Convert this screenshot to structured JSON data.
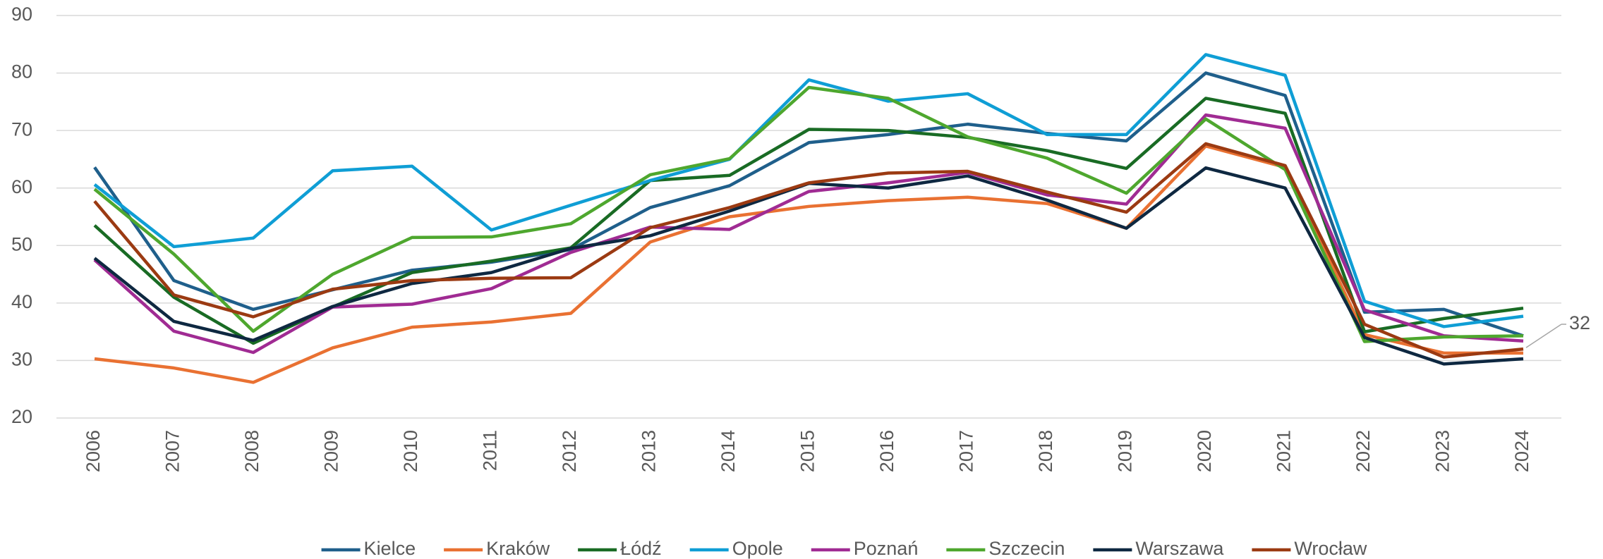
{
  "chart_data": {
    "type": "line",
    "x": [
      "2006",
      "2007",
      "2008",
      "2009",
      "2010",
      "2011",
      "2012",
      "2013",
      "2014",
      "2015",
      "2016",
      "2017",
      "2018",
      "2019",
      "2020",
      "2021",
      "2022",
      "2023",
      "2024"
    ],
    "ylim": [
      20,
      90
    ],
    "yticks": [
      20,
      30,
      40,
      50,
      60,
      70,
      80,
      90
    ],
    "grid": true,
    "legend": "bottom",
    "data_label": {
      "series": "Wrocław",
      "point": "2024"
    },
    "series": [
      {
        "name": "Kielce",
        "color": "#1f5f8b",
        "values": [
          63.6,
          43.9,
          38.9,
          42.3,
          45.7,
          47.1,
          49.3,
          56.6,
          60.4,
          67.9,
          69.3,
          71.1,
          69.5,
          68.2,
          80,
          76.1,
          38.4,
          38.9,
          34.3
        ]
      },
      {
        "name": "Kraków",
        "color": "#e97132",
        "values": [
          30.3,
          28.7,
          26.2,
          32.2,
          35.8,
          36.7,
          38.2,
          50.6,
          55,
          56.8,
          57.8,
          58.4,
          57.3,
          53,
          67.3,
          63.6,
          34.5,
          31.3,
          31.3
        ]
      },
      {
        "name": "Łódź",
        "color": "#196b24",
        "values": [
          53.5,
          41,
          33,
          39.3,
          45.3,
          47.3,
          49.6,
          61.3,
          62.2,
          70.2,
          70,
          68.8,
          66.5,
          63.4,
          75.6,
          73,
          35,
          37.3,
          39.1
        ]
      },
      {
        "name": "Opole",
        "color": "#0f9ed5",
        "values": [
          60.6,
          49.8,
          51.3,
          63,
          63.8,
          52.7,
          57,
          61.3,
          65,
          78.8,
          75.1,
          76.4,
          69.3,
          69.3,
          83.2,
          79.6,
          40.3,
          35.9,
          37.7
        ]
      },
      {
        "name": "Poznań",
        "color": "#a02b93",
        "values": [
          47.5,
          35.1,
          31.4,
          39.3,
          39.8,
          42.5,
          48.8,
          53.2,
          52.8,
          59.4,
          60.9,
          62.7,
          58.8,
          57.2,
          72.7,
          70.4,
          38.8,
          34.3,
          33.4
        ]
      },
      {
        "name": "Szczecin",
        "color": "#4ea72e",
        "values": [
          59.8,
          48.5,
          35.1,
          45,
          51.4,
          51.5,
          53.8,
          62.3,
          65.1,
          77.5,
          75.6,
          68.9,
          65.2,
          59.1,
          72,
          63.2,
          33.3,
          34.1,
          34.3
        ]
      },
      {
        "name": "Warszawa",
        "color": "#0e2841",
        "values": [
          47.8,
          36.8,
          33.5,
          39.4,
          43.4,
          45.3,
          49.5,
          51.7,
          56,
          60.8,
          60,
          62.1,
          57.9,
          53,
          63.5,
          60,
          34,
          29.4,
          30.3
        ]
      },
      {
        "name": "Wrocław",
        "color": "#9b3a12",
        "values": [
          57.7,
          41.4,
          37.6,
          42.4,
          43.9,
          44.3,
          44.4,
          53.1,
          56.6,
          60.9,
          62.6,
          62.9,
          59.3,
          55.8,
          67.7,
          63.9,
          36.3,
          30.6,
          32
        ]
      }
    ]
  }
}
